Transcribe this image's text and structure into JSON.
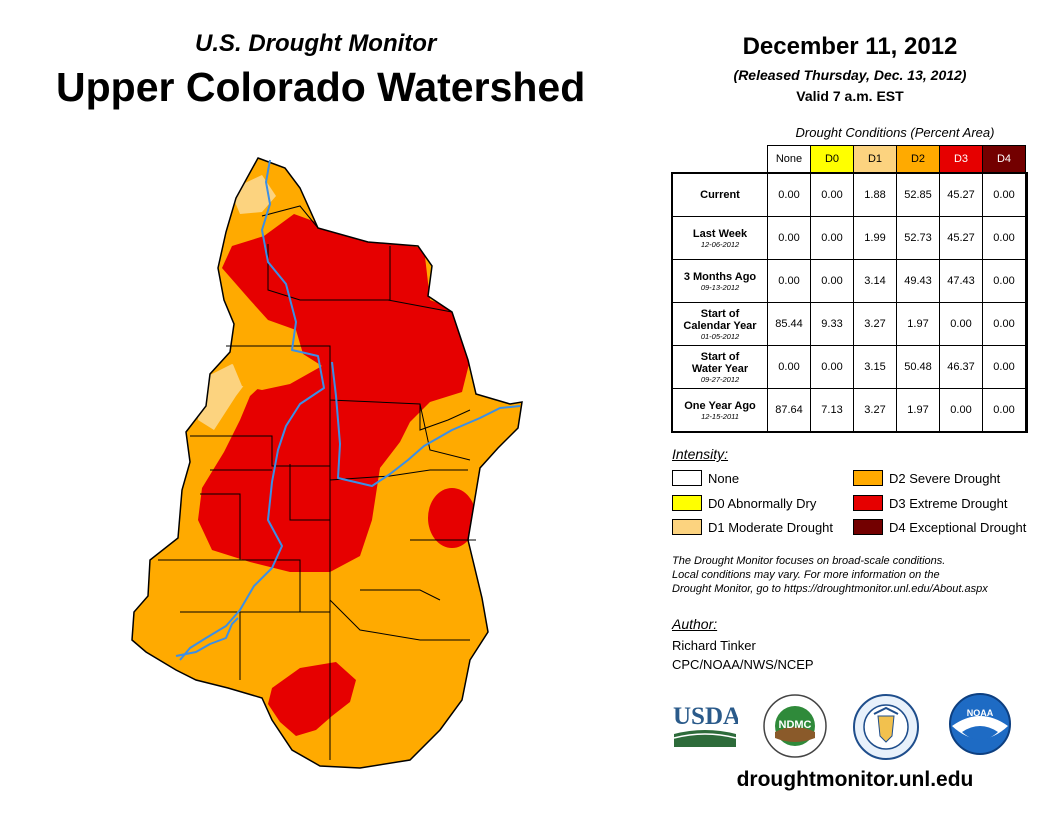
{
  "header": {
    "subtitle": "U.S. Drought Monitor",
    "title": "Upper Colorado Watershed",
    "date": "December 11, 2012",
    "released": "(Released Thursday, Dec. 13, 2012)",
    "valid": "Valid 7 a.m. EST"
  },
  "table": {
    "title": "Drought Conditions (Percent Area)",
    "columns": [
      "None",
      "D0",
      "D1",
      "D2",
      "D3",
      "D4"
    ],
    "column_colors": [
      "#ffffff",
      "#ffff00",
      "#fcd37f",
      "#ffaa00",
      "#e60000",
      "#730000"
    ],
    "rows": [
      {
        "label": "Current",
        "label2": "",
        "date": "",
        "values": [
          "0.00",
          "0.00",
          "1.88",
          "52.85",
          "45.27",
          "0.00"
        ]
      },
      {
        "label": "Last Week",
        "label2": "",
        "date": "12-06-2012",
        "values": [
          "0.00",
          "0.00",
          "1.99",
          "52.73",
          "45.27",
          "0.00"
        ]
      },
      {
        "label": "3 Months Ago",
        "label2": "",
        "date": "09-13-2012",
        "values": [
          "0.00",
          "0.00",
          "3.14",
          "49.43",
          "47.43",
          "0.00"
        ]
      },
      {
        "label": "Start of",
        "label2": "Calendar Year",
        "date": "01-05-2012",
        "values": [
          "85.44",
          "9.33",
          "3.27",
          "1.97",
          "0.00",
          "0.00"
        ]
      },
      {
        "label": "Start of",
        "label2": "Water Year",
        "date": "09-27-2012",
        "values": [
          "0.00",
          "0.00",
          "3.15",
          "50.48",
          "46.37",
          "0.00"
        ]
      },
      {
        "label": "One Year Ago",
        "label2": "",
        "date": "12-15-2011",
        "values": [
          "87.64",
          "7.13",
          "3.27",
          "1.97",
          "0.00",
          "0.00"
        ]
      }
    ]
  },
  "legend": {
    "title": "Intensity:",
    "items": [
      {
        "label": "None",
        "color": "#ffffff"
      },
      {
        "label": "D0 Abnormally Dry",
        "color": "#ffff00"
      },
      {
        "label": "D1 Moderate Drought",
        "color": "#fcd37f"
      },
      {
        "label": "D2 Severe Drought",
        "color": "#ffaa00"
      },
      {
        "label": "D3 Extreme Drought",
        "color": "#e60000"
      },
      {
        "label": "D4 Exceptional Drought",
        "color": "#730000"
      }
    ]
  },
  "note": {
    "line1": "The Drought Monitor focuses on broad-scale conditions.",
    "line2": "Local conditions may vary. For more information on the",
    "line3": "Drought Monitor, go to https://droughtmonitor.unl.edu/About.aspx"
  },
  "author": {
    "label": "Author:",
    "name": "Richard Tinker",
    "org": "CPC/NOAA/NWS/NCEP"
  },
  "logos": {
    "usda": "USDA",
    "ndmc": "NDMC",
    "noaa": "NOAA"
  },
  "footer": {
    "url": "droughtmonitor.unl.edu"
  },
  "map": {
    "colors": {
      "d1": "#fcd37f",
      "d2": "#ffaa00",
      "d3": "#e60000",
      "river": "#3b8fe6",
      "border": "#000000"
    }
  }
}
